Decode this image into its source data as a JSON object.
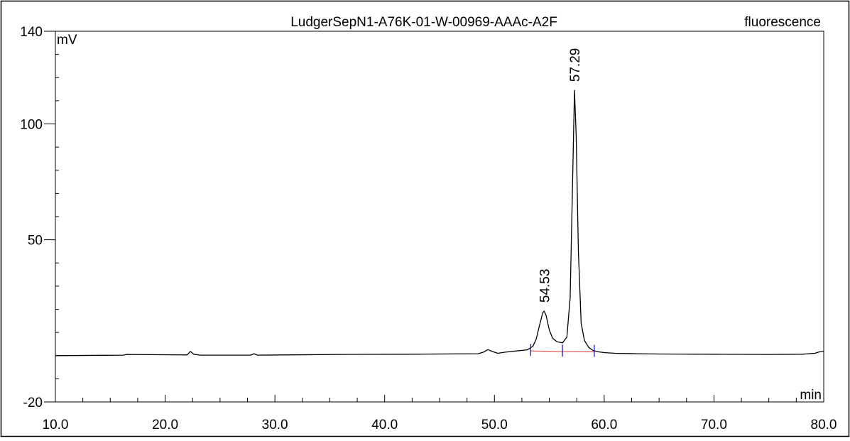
{
  "chart_data": {
    "type": "line",
    "title": "LudgerSepN1-A76K-01-W-00969-AAAc-A2F",
    "channel_label": "fluorescence",
    "xlabel": "min",
    "ylabel": "mV",
    "xlim": [
      10.0,
      80.0
    ],
    "ylim": [
      -20,
      140
    ],
    "x_ticks": [
      10.0,
      20.0,
      30.0,
      40.0,
      50.0,
      60.0,
      70.0,
      80.0
    ],
    "x_tick_labels": [
      "10.0",
      "20.0",
      "30.0",
      "40.0",
      "50.0",
      "60.0",
      "70.0",
      "80.0"
    ],
    "y_ticks": [
      -20,
      50,
      100,
      140
    ],
    "y_tick_labels": [
      "-20",
      "50",
      "100",
      "140"
    ],
    "grid": false,
    "series": [
      {
        "color": "#000000",
        "x": [
          10.0,
          16.2,
          16.5,
          22.0,
          22.3,
          22.6,
          23.2,
          27.8,
          28.1,
          28.4,
          36.0,
          42.0,
          48.5,
          49.0,
          49.4,
          49.8,
          50.3,
          51.0,
          52.0,
          53.0,
          53.5,
          53.8,
          54.1,
          54.4,
          54.53,
          54.7,
          55.0,
          55.3,
          55.7,
          56.2,
          56.6,
          56.9,
          57.1,
          57.29,
          57.45,
          57.65,
          57.9,
          58.2,
          58.6,
          59.0,
          59.5,
          60.0,
          61.0,
          63.0,
          65.0,
          70.0,
          75.0,
          78.0,
          79.2,
          79.6,
          80.0
        ],
        "y": [
          0.0,
          0.2,
          0.5,
          0.3,
          1.8,
          0.6,
          0.2,
          0.2,
          0.8,
          0.2,
          0.5,
          0.6,
          0.8,
          1.5,
          2.6,
          1.8,
          1.0,
          1.5,
          2.0,
          2.5,
          4.0,
          7.0,
          13.0,
          18.5,
          19.2,
          17.5,
          11.0,
          7.5,
          6.0,
          5.5,
          8.0,
          25.0,
          70.0,
          114.5,
          95.0,
          45.0,
          14.0,
          6.5,
          3.5,
          2.2,
          1.6,
          1.3,
          1.0,
          0.8,
          0.7,
          0.6,
          0.5,
          0.6,
          1.0,
          1.6,
          1.8
        ]
      }
    ],
    "baseline": {
      "color": "#e05050",
      "x": [
        53.3,
        56.2,
        59.1
      ],
      "y": [
        2.0,
        1.7,
        1.6
      ]
    },
    "peak_markers": {
      "color": "#2020c0",
      "x": [
        53.3,
        56.2,
        59.1
      ]
    },
    "peak_labels": [
      {
        "x": 54.53,
        "y": 19.2,
        "text": "54.53"
      },
      {
        "x": 57.29,
        "y": 114.5,
        "text": "57.29"
      }
    ]
  }
}
